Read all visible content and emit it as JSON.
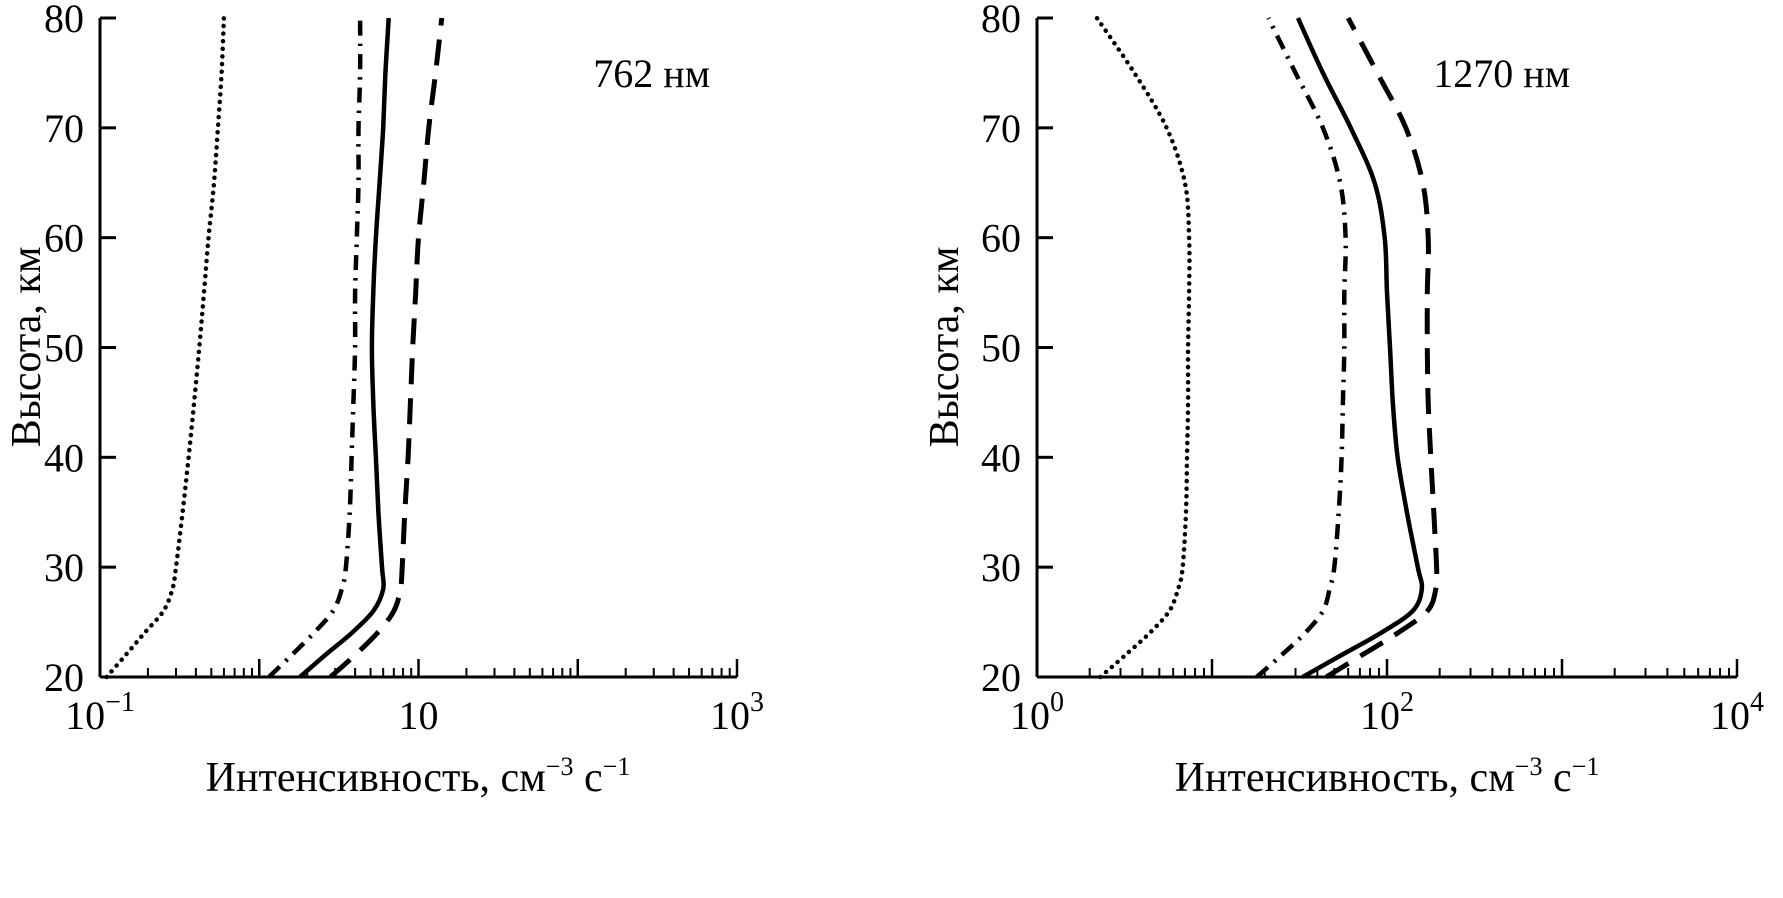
{
  "figure": {
    "background": "#ffffff",
    "ink": "#000000"
  },
  "chart_data": [
    {
      "type": "line",
      "panel": "left",
      "title": "762 нм",
      "xlabel": "Интенсивность, см⁻³ с⁻¹",
      "xlabel_parts": {
        "pre": "Интенсивность, см",
        "sup1": "−3",
        "mid": " с",
        "sup2": "−1"
      },
      "ylabel": "Высота, км",
      "x_scale": "log",
      "xlim": [
        0.1,
        1000
      ],
      "ylim": [
        20,
        80
      ],
      "y_ticks": [
        20,
        30,
        40,
        50,
        60,
        70,
        80
      ],
      "x_tick_labels": [
        {
          "at": -1,
          "base": "10",
          "exp": "−1"
        },
        {
          "at": 1,
          "base": "10",
          "exp": ""
        },
        {
          "at": 3,
          "base": "10",
          "exp": "3"
        }
      ],
      "grid": false,
      "legend": null,
      "heights_km": [
        20,
        22,
        24,
        26,
        28,
        30,
        35,
        40,
        45,
        50,
        55,
        60,
        65,
        70,
        75,
        80
      ],
      "series": [
        {
          "name": "dotted",
          "line_style": "dotted",
          "values": [
            0.11,
            0.145,
            0.19,
            0.25,
            0.285,
            0.3,
            0.33,
            0.36,
            0.39,
            0.42,
            0.45,
            0.48,
            0.52,
            0.55,
            0.58,
            0.6
          ]
        },
        {
          "name": "dash-dot",
          "line_style": "dash-dot",
          "values": [
            1.15,
            1.6,
            2.2,
            2.9,
            3.3,
            3.5,
            3.7,
            3.8,
            3.9,
            4.0,
            4.0,
            4.1,
            4.2,
            4.2,
            4.3,
            4.3
          ]
        },
        {
          "name": "solid",
          "line_style": "solid",
          "values": [
            1.8,
            2.6,
            3.8,
            5.2,
            6.0,
            5.9,
            5.6,
            5.4,
            5.2,
            5.1,
            5.2,
            5.4,
            5.7,
            6.0,
            6.2,
            6.5
          ]
        },
        {
          "name": "dashed",
          "line_style": "dashed",
          "values": [
            2.8,
            4.0,
            5.5,
            7.0,
            7.7,
            7.9,
            8.2,
            8.6,
            8.9,
            9.2,
            9.6,
            10.0,
            10.8,
            11.6,
            12.8,
            14.0
          ]
        }
      ]
    },
    {
      "type": "line",
      "panel": "right",
      "title": "1270 нм",
      "xlabel": "Интенсивность, см⁻³ с⁻¹",
      "xlabel_parts": {
        "pre": "Интенсивность, см",
        "sup1": "−3",
        "mid": " с",
        "sup2": "−1"
      },
      "ylabel": "Высота, км",
      "x_scale": "log",
      "xlim": [
        1,
        10000
      ],
      "ylim": [
        20,
        80
      ],
      "y_ticks": [
        20,
        30,
        40,
        50,
        60,
        70,
        80
      ],
      "x_tick_labels": [
        {
          "at": 0,
          "base": "10",
          "exp": "0"
        },
        {
          "at": 2,
          "base": "10",
          "exp": "2"
        },
        {
          "at": 4,
          "base": "10",
          "exp": "4"
        }
      ],
      "grid": false,
      "legend": null,
      "heights_km": [
        20,
        22,
        24,
        26,
        28,
        30,
        35,
        40,
        45,
        50,
        55,
        60,
        65,
        70,
        75,
        80
      ],
      "series": [
        {
          "name": "dotted",
          "line_style": "dotted",
          "values": [
            2.3,
            3.2,
            4.4,
            5.7,
            6.4,
            6.8,
            7.1,
            7.2,
            7.3,
            7.3,
            7.4,
            7.4,
            7.0,
            5.5,
            3.6,
            2.2
          ]
        },
        {
          "name": "dash-dot",
          "line_style": "dash-dot",
          "values": [
            18,
            25,
            34,
            43,
            47,
            50,
            53,
            55,
            56,
            57,
            57,
            58,
            54,
            43,
            30,
            21
          ]
        },
        {
          "name": "solid",
          "line_style": "solid",
          "values": [
            33,
            55,
            92,
            140,
            158,
            150,
            130,
            115,
            108,
            104,
            100,
            97,
            85,
            62,
            43,
            31
          ]
        },
        {
          "name": "dashed",
          "line_style": "dashed",
          "values": [
            45,
            72,
            115,
            170,
            190,
            192,
            185,
            178,
            172,
            170,
            170,
            172,
            160,
            128,
            88,
            60
          ]
        }
      ]
    }
  ]
}
